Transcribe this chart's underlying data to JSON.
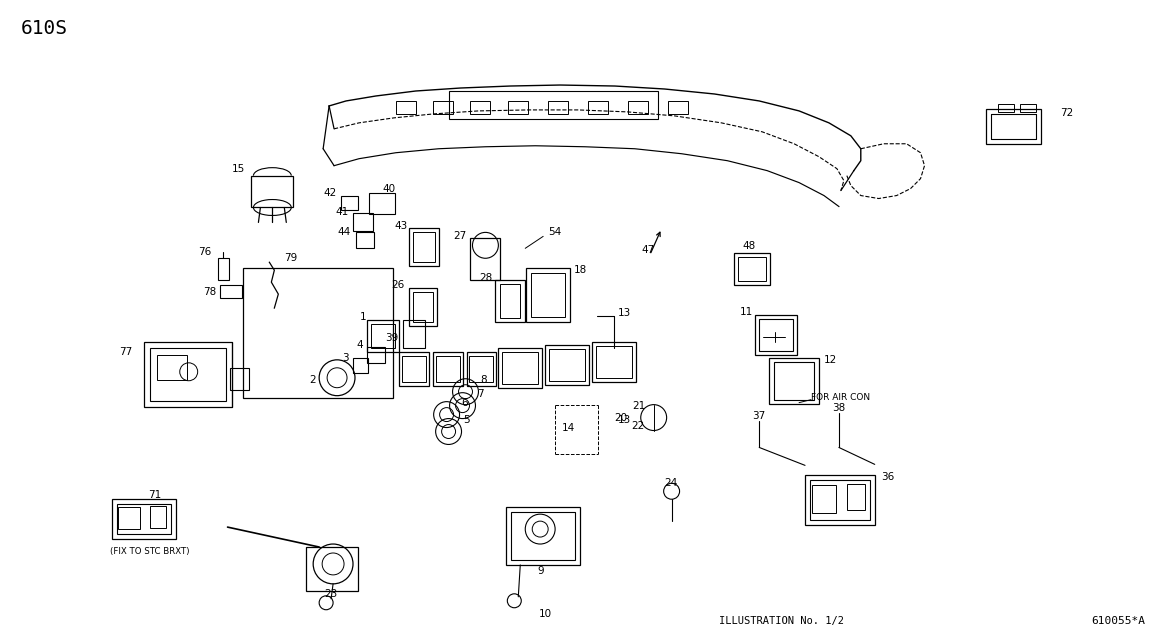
{
  "title_label": "610S",
  "bottom_center": "ILLUSTRATION No. 1/2",
  "bottom_right": "610055*A",
  "for_air_con": "FOR AIR CON",
  "fix_to_stc": "(FIX TO STC BRXT)",
  "background": "#ffffff",
  "text_color": "#000000",
  "fig_width": 11.67,
  "fig_height": 6.41,
  "dpi": 100
}
